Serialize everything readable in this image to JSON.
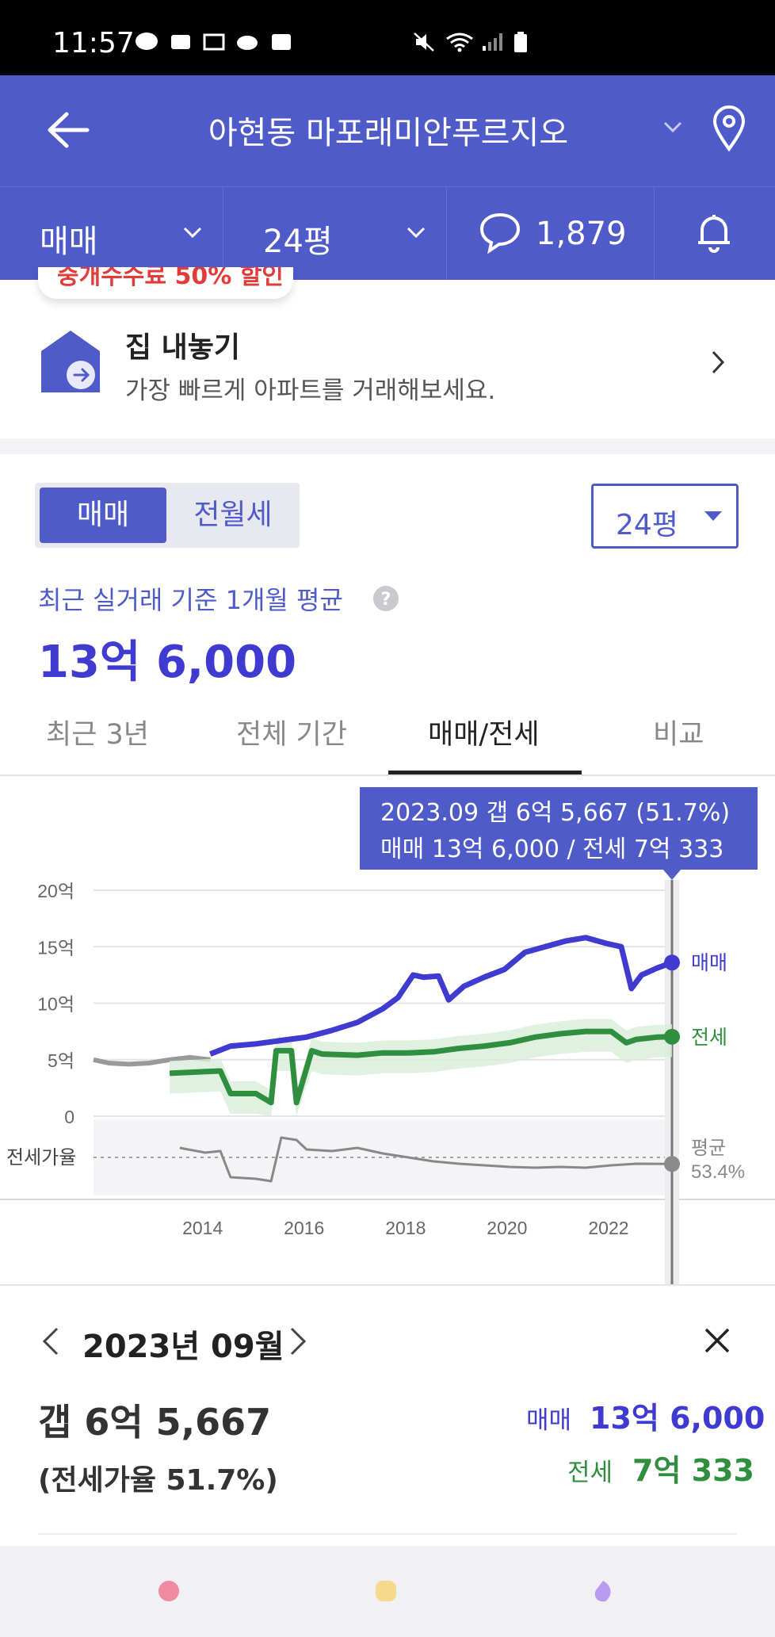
{
  "status_bar": {
    "time": "11:57"
  },
  "header": {
    "title": "아현동 마포래미안푸르지오"
  },
  "subbar": {
    "trade_type": "매매",
    "size": "24평",
    "comment_count": "1,879"
  },
  "promo": {
    "ribbon": "중개수수료 50% 할인",
    "title": "집 내놓기",
    "subtitle": "가장 빠르게 아파트를 거래해보세요."
  },
  "price_section": {
    "toggle": [
      "매매",
      "전월세"
    ],
    "size_select": "24평",
    "avg_caption": "최근 실거래 기준 1개월 평균",
    "avg_price": "13억 6,000"
  },
  "chart_tabs": [
    "최근 3년",
    "전체 기간",
    "매매/전세",
    "비교"
  ],
  "tooltip": {
    "line1": "2023.09  갭 6억 5,667 (51.7%)",
    "line2": "매매 13억 6,000 / 전세 7억 333"
  },
  "chart_data": {
    "type": "line",
    "y_ticks": [
      "20억",
      "15억",
      "10억",
      "5억",
      "0"
    ],
    "ylim": [
      0,
      20
    ],
    "x_ticks": [
      "2014",
      "2016",
      "2018",
      "2020",
      "2022"
    ],
    "ratio_label": "전세가율",
    "end_labels": {
      "sale": "매매",
      "jeonse": "전세",
      "avg": "평균",
      "avg_value": "53.4%"
    },
    "colors": {
      "sale": "#3f3bd0",
      "jeonse": "#2f8f3f",
      "ratio": "#888888",
      "pre": "#999999"
    },
    "pre_series": {
      "x": [
        2012.3,
        2012.6,
        2013.0,
        2013.4,
        2013.8,
        2014.2,
        2014.6
      ],
      "values": [
        5.0,
        4.7,
        4.6,
        4.7,
        5.0,
        5.2,
        5.0
      ]
    },
    "series": [
      {
        "name": "매매",
        "x": [
          2014.6,
          2015.0,
          2015.5,
          2016.0,
          2016.5,
          2017.0,
          2017.5,
          2018.0,
          2018.3,
          2018.6,
          2018.8,
          2019.1,
          2019.3,
          2019.6,
          2020.0,
          2020.4,
          2020.8,
          2021.2,
          2021.6,
          2022.0,
          2022.4,
          2022.7,
          2022.9,
          2023.1,
          2023.4,
          2023.7
        ],
        "values": [
          5.5,
          6.2,
          6.4,
          6.7,
          7.0,
          7.6,
          8.3,
          9.5,
          10.5,
          12.5,
          12.3,
          12.4,
          10.3,
          11.5,
          12.3,
          13.0,
          14.5,
          15.0,
          15.5,
          15.8,
          15.3,
          15.0,
          11.3,
          12.5,
          13.1,
          13.6
        ]
      },
      {
        "name": "전세",
        "x": [
          2013.8,
          2014.3,
          2014.8,
          2015.0,
          2015.5,
          2015.8,
          2015.9,
          2016.2,
          2016.3,
          2016.6,
          2016.8,
          2017.5,
          2018.0,
          2018.5,
          2019.0,
          2019.5,
          2020.0,
          2020.5,
          2021.0,
          2021.5,
          2022.0,
          2022.5,
          2022.8,
          2023.0,
          2023.4,
          2023.7
        ],
        "values": [
          3.8,
          3.9,
          4.0,
          2.0,
          2.0,
          1.2,
          5.8,
          5.8,
          1.2,
          5.8,
          5.5,
          5.4,
          5.6,
          5.6,
          5.7,
          6.0,
          6.2,
          6.5,
          7.0,
          7.3,
          7.5,
          7.5,
          6.5,
          6.8,
          7.0,
          7.03
        ]
      }
    ],
    "ratio_series": {
      "x": [
        2014.0,
        2014.5,
        2014.8,
        2015.0,
        2015.5,
        2015.8,
        2016.0,
        2016.3,
        2016.5,
        2017.0,
        2017.5,
        2018.0,
        2018.5,
        2019.0,
        2019.5,
        2020.0,
        2020.5,
        2021.0,
        2021.5,
        2022.0,
        2022.5,
        2023.0,
        2023.7
      ],
      "values": [
        72,
        66,
        68,
        35,
        33,
        30,
        85,
        82,
        70,
        68,
        72,
        65,
        60,
        55,
        52,
        50,
        48,
        47,
        48,
        47,
        50,
        52,
        51.7
      ]
    },
    "ratio_avg": 53.4,
    "selected_x": 2023.7
  },
  "detail": {
    "month": "2023년 09월",
    "gap": "갭 6억 5,667",
    "ratio": "(전세가율 51.7%)",
    "sale_label": "매매",
    "sale_value": "13억 6,000",
    "jeonse_label": "전세",
    "jeonse_value": "7억 333"
  }
}
